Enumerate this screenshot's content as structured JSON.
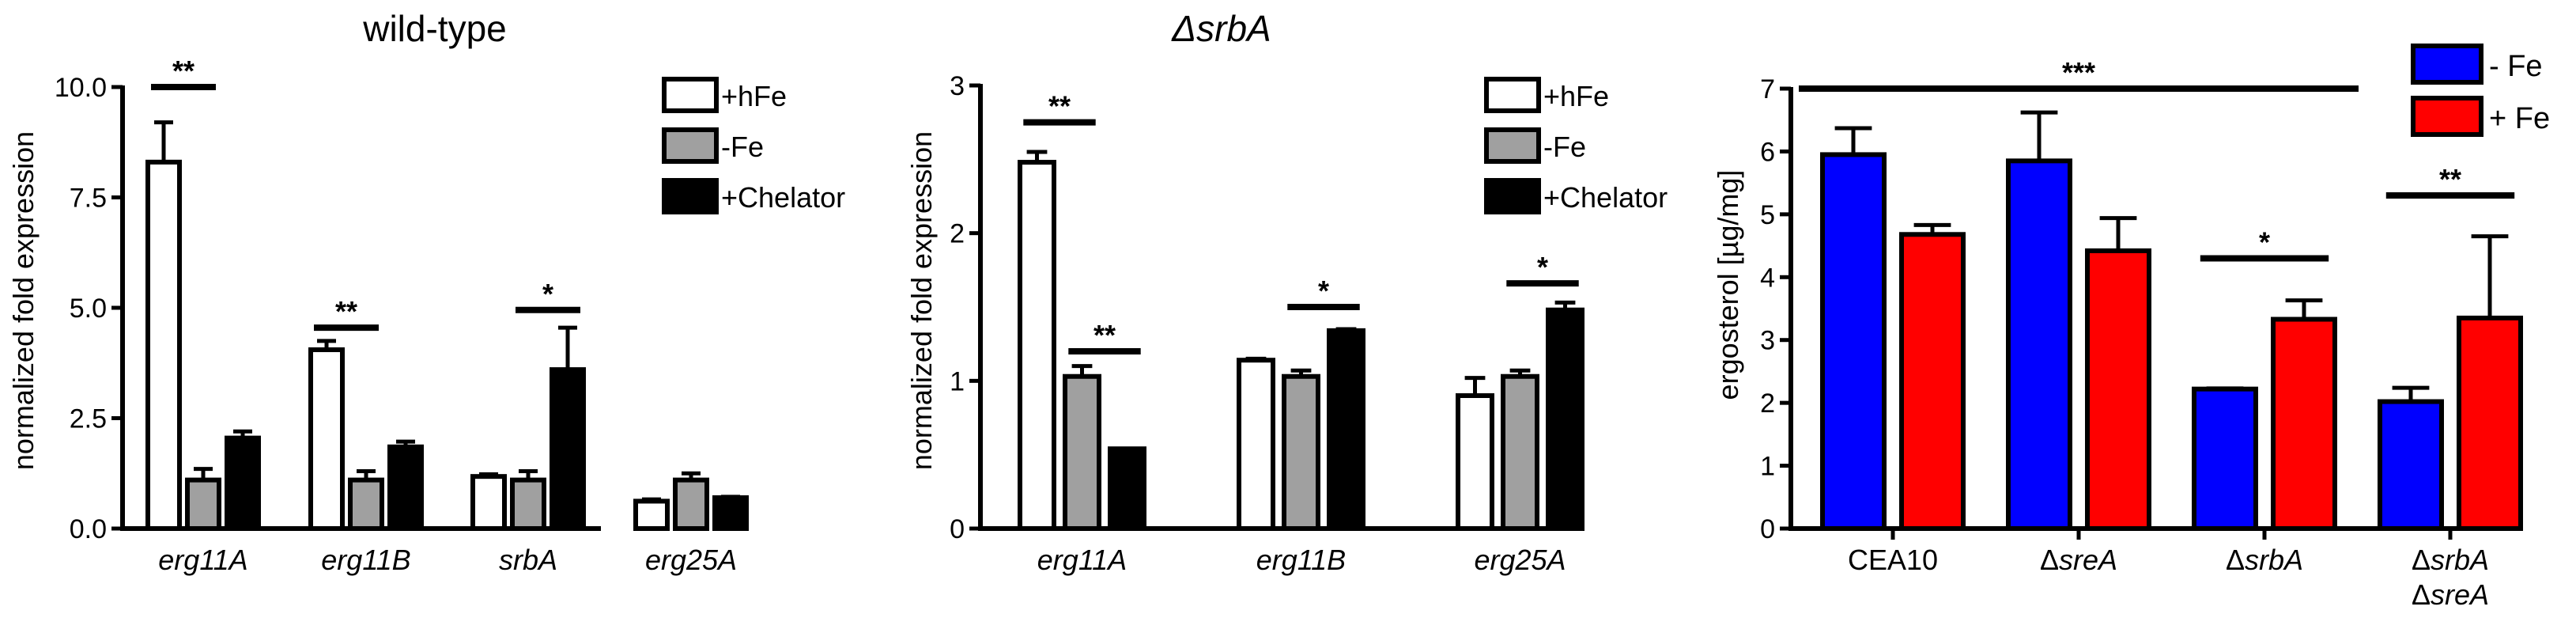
{
  "chart_data": [
    {
      "type": "bar",
      "title": "wild-type",
      "xlabel": "",
      "ylabel": "normalized fold expression",
      "ylim": [
        0,
        10
      ],
      "yticks": [
        "0.0",
        "2.5",
        "5.0",
        "7.5",
        "10.0"
      ],
      "categories": [
        "erg11A",
        "erg11B",
        "srbA",
        "erg25A"
      ],
      "series": [
        {
          "name": "+hFe",
          "color": "#ffffff",
          "values": [
            8.3,
            4.05,
            1.18,
            0.62
          ],
          "errors": [
            0.9,
            0.2,
            0.05,
            0.04
          ]
        },
        {
          "name": "-Fe",
          "color": "#a0a0a0",
          "values": [
            1.1,
            1.1,
            1.1,
            1.1
          ],
          "errors": [
            0.25,
            0.2,
            0.2,
            0.15
          ]
        },
        {
          "name": "+Chelator",
          "color": "#000000",
          "values": [
            2.05,
            1.85,
            3.6,
            0.7
          ],
          "errors": [
            0.15,
            0.12,
            0.95,
            0.02
          ]
        }
      ],
      "significance": [
        {
          "label": "**",
          "category": 0,
          "from_series": 0,
          "to_series": 1,
          "y": 10.0
        },
        {
          "label": "**",
          "category": 1,
          "from_series": 0,
          "to_series": 1,
          "y": 4.55
        },
        {
          "label": "*",
          "category": 2,
          "from_series": 1,
          "to_series": 2,
          "y": 4.95
        }
      ],
      "legend": "top-right"
    },
    {
      "type": "bar",
      "title": "ΔsrbA",
      "xlabel": "",
      "ylabel": "normalized fold expression",
      "ylim": [
        0,
        3
      ],
      "yticks": [
        "0",
        "1",
        "2",
        "3"
      ],
      "categories": [
        "erg11A",
        "erg11B",
        "erg25A"
      ],
      "series": [
        {
          "name": "+hFe",
          "color": "#ffffff",
          "values": [
            2.48,
            1.14,
            0.9
          ],
          "errors": [
            0.07,
            0.01,
            0.12
          ]
        },
        {
          "name": "-Fe",
          "color": "#a0a0a0",
          "values": [
            1.03,
            1.03,
            1.03
          ],
          "errors": [
            0.07,
            0.04,
            0.04
          ]
        },
        {
          "name": "+Chelator",
          "color": "#000000",
          "values": [
            0.54,
            1.34,
            1.48
          ],
          "errors": [
            0.0,
            0.01,
            0.05
          ]
        }
      ],
      "significance": [
        {
          "label": "**",
          "category": 0,
          "from_series": 0,
          "to_series": 1,
          "y": 2.75
        },
        {
          "label": "**",
          "category": 0,
          "from_series": 1,
          "to_series": 2,
          "y": 1.2
        },
        {
          "label": "*",
          "category": 1,
          "from_series": 1,
          "to_series": 2,
          "y": 1.5
        },
        {
          "label": "*",
          "category": 2,
          "from_series": 1,
          "to_series": 2,
          "y": 1.66
        }
      ],
      "legend": "top-right"
    },
    {
      "type": "bar",
      "title": "",
      "xlabel": "",
      "ylabel": "ergosterol [µg/mg]",
      "ylim": [
        0,
        7
      ],
      "yticks": [
        "0",
        "1",
        "2",
        "3",
        "4",
        "5",
        "6",
        "7"
      ],
      "categories": [
        [
          "CEA10"
        ],
        [
          "ΔsreA"
        ],
        [
          "ΔsrbA"
        ],
        [
          "ΔsrbA",
          "ΔsreA"
        ]
      ],
      "series": [
        {
          "name": "- Fe",
          "color": "#0000ff",
          "values": [
            5.95,
            5.85,
            2.22,
            2.02
          ],
          "errors": [
            0.42,
            0.77,
            0.01,
            0.22
          ]
        },
        {
          "name": "+ Fe",
          "color": "#ff0000",
          "values": [
            4.68,
            4.42,
            3.33,
            3.35
          ],
          "errors": [
            0.15,
            0.52,
            0.3,
            1.3
          ]
        }
      ],
      "significance": [
        {
          "label": "***",
          "from_category": 0,
          "to_category": 2,
          "y": 7.0
        },
        {
          "label": "*",
          "category": 2,
          "from_series": 0,
          "to_series": 1,
          "y": 4.3
        },
        {
          "label": "**",
          "category": 3,
          "from_series": 0,
          "to_series": 1,
          "y": 5.3
        }
      ],
      "legend": "top-right"
    }
  ]
}
